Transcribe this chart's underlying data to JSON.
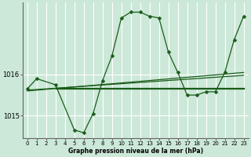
{
  "xlabel": "Graphe pression niveau de la mer (hPa)",
  "bg_color": "#cce8d8",
  "grid_color": "#ffffff",
  "line_color": "#1a5c1a",
  "xmin": -0.5,
  "xmax": 23.5,
  "ymin": 1014.45,
  "ymax": 1017.75,
  "yticks": [
    1015,
    1016
  ],
  "xticks": [
    0,
    1,
    2,
    3,
    4,
    5,
    6,
    7,
    8,
    9,
    10,
    11,
    12,
    13,
    14,
    15,
    16,
    17,
    18,
    19,
    20,
    21,
    22,
    23
  ],
  "line_main": {
    "x": [
      0,
      1,
      3,
      5,
      6,
      7,
      8,
      9,
      10,
      11,
      12,
      13,
      14,
      15,
      16,
      17,
      18,
      19,
      20,
      21,
      22,
      23
    ],
    "y": [
      1015.65,
      1015.9,
      1015.75,
      1014.65,
      1014.58,
      1015.05,
      1015.85,
      1016.45,
      1017.38,
      1017.52,
      1017.52,
      1017.42,
      1017.38,
      1016.55,
      1016.05,
      1015.5,
      1015.5,
      1015.58,
      1015.58,
      1016.05,
      1016.85,
      1017.42
    ]
  },
  "line_avg1": {
    "x": [
      0,
      23
    ],
    "y": [
      1015.6,
      1016.05
    ]
  },
  "line_avg2": {
    "x": [
      0,
      23
    ],
    "y": [
      1015.62,
      1015.98
    ]
  },
  "line_flat": {
    "x": [
      3,
      23
    ],
    "y": [
      1015.68,
      1015.68
    ]
  },
  "line_flat2": {
    "x": [
      3,
      23
    ],
    "y": [
      1015.65,
      1015.65
    ]
  }
}
